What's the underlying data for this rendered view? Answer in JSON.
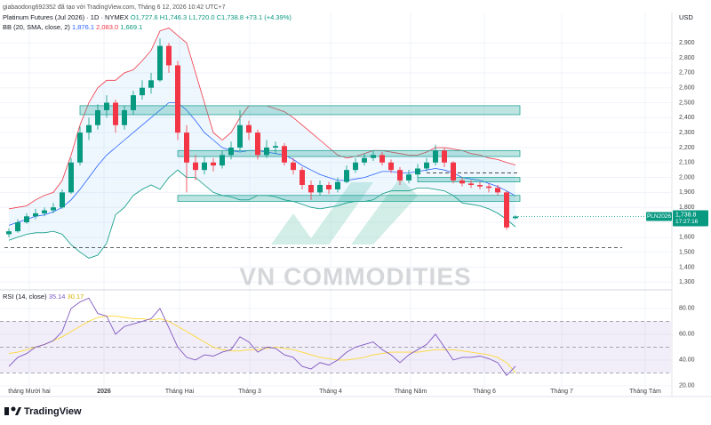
{
  "header": {
    "attribution": "giabaodong692352 đã tạo với TradingView.com, Tháng 6 12, 2026 10:42 UTC+7",
    "brand": "TradingView",
    "watermark": "VN COMMODITIES",
    "currency": "USD"
  },
  "chart_data": [
    {
      "type": "candlestick",
      "title": "Platinum Futures (Jul 2026) · 1D · NYMEX",
      "ohlc_labels": [
        "O1,727.6",
        "H1,746.3",
        "L1,720.0",
        "C1,738.8",
        "+73.1 (+4.39%)"
      ],
      "open": [
        1620,
        1640,
        1700,
        1740,
        1760,
        1780,
        1800,
        1900,
        2100,
        2300,
        2350,
        2450,
        2500,
        2350,
        2450,
        2550,
        2600,
        2650,
        2880,
        2750,
        2300,
        2100,
        2050,
        2100,
        2080,
        2150,
        2200,
        2350,
        2300,
        2150,
        2200,
        2210,
        2100,
        2050,
        1950,
        1900,
        1950,
        1920,
        1970,
        2050,
        2100,
        2130,
        2150,
        2100,
        2050,
        1980,
        2020,
        2060,
        2100,
        2180,
        2100,
        1980,
        1960,
        1950,
        1940,
        1930,
        1900,
        1727.6
      ],
      "high": [
        1660,
        1720,
        1760,
        1790,
        1800,
        1830,
        1920,
        2130,
        2340,
        2400,
        2490,
        2550,
        2520,
        2480,
        2580,
        2650,
        2700,
        2930,
        2900,
        2780,
        2350,
        2150,
        2140,
        2130,
        2180,
        2240,
        2450,
        2380,
        2320,
        2250,
        2240,
        2230,
        2130,
        2070,
        1980,
        1980,
        1970,
        2000,
        2080,
        2130,
        2160,
        2180,
        2170,
        2120,
        2070,
        2050,
        2090,
        2130,
        2220,
        2200,
        2110,
        2000,
        1980,
        1970,
        1960,
        1950,
        1910,
        1746.3
      ],
      "low": [
        1600,
        1630,
        1690,
        1720,
        1740,
        1760,
        1790,
        1890,
        2080,
        2250,
        2320,
        2400,
        2300,
        2320,
        2420,
        2520,
        2560,
        2640,
        2700,
        2250,
        1900,
        1980,
        2020,
        2040,
        2060,
        2120,
        2180,
        2250,
        2120,
        2130,
        2160,
        2080,
        2020,
        1920,
        1850,
        1880,
        1890,
        1900,
        1960,
        2030,
        2080,
        2110,
        2080,
        2030,
        1950,
        1960,
        2000,
        2040,
        2080,
        2070,
        1960,
        1940,
        1930,
        1920,
        1900,
        1880,
        1650,
        1720.0
      ],
      "close": [
        1640,
        1700,
        1740,
        1760,
        1780,
        1800,
        1900,
        2100,
        2300,
        2350,
        2450,
        2500,
        2350,
        2450,
        2550,
        2600,
        2650,
        2880,
        2750,
        2300,
        2100,
        2050,
        2100,
        2080,
        2150,
        2200,
        2350,
        2300,
        2150,
        2200,
        2210,
        2100,
        2050,
        1950,
        1900,
        1950,
        1920,
        1970,
        2050,
        2100,
        2130,
        2150,
        2100,
        2050,
        1980,
        2020,
        2060,
        2100,
        2180,
        2100,
        1980,
        1960,
        1950,
        1940,
        1930,
        1900,
        1665.7,
        1738.8
      ],
      "up_color": "#089981",
      "down_color": "#f23645",
      "last_price": {
        "symbol": "PLN2026",
        "label": "1,738.8",
        "countdown": "17:27:16"
      },
      "bollinger": {
        "label": "BB (20, SMA, close, 2)",
        "fill": "#2196f3",
        "basis": {
          "color": "#2962ff",
          "value_label": "1,876.1",
          "values": [
            1680,
            1700,
            1720,
            1740,
            1750,
            1770,
            1800,
            1850,
            1920,
            2000,
            2080,
            2150,
            2200,
            2250,
            2300,
            2350,
            2400,
            2450,
            2500,
            2500,
            2450,
            2380,
            2300,
            2250,
            2200,
            2180,
            2170,
            2180,
            2180,
            2170,
            2160,
            2150,
            2120,
            2080,
            2050,
            2020,
            2000,
            1980,
            1980,
            1990,
            2000,
            2020,
            2040,
            2040,
            2030,
            2030,
            2040,
            2050,
            2060,
            2050,
            2030,
            2000,
            1990,
            1980,
            1960,
            1940,
            1910,
            1876.1
          ]
        },
        "upper": {
          "color": "#f23645",
          "value_label": "2,083.0",
          "values": [
            1790,
            1800,
            1810,
            1850,
            1880,
            1900,
            1980,
            2150,
            2350,
            2500,
            2600,
            2650,
            2650,
            2700,
            2720,
            2780,
            2850,
            2980,
            3000,
            2950,
            2900,
            2700,
            2500,
            2300,
            2250,
            2300,
            2400,
            2480,
            2480,
            2480,
            2460,
            2440,
            2400,
            2350,
            2300,
            2250,
            2200,
            2150,
            2130,
            2140,
            2160,
            2180,
            2180,
            2170,
            2160,
            2150,
            2150,
            2170,
            2200,
            2200,
            2190,
            2180,
            2160,
            2150,
            2130,
            2120,
            2100,
            2083.0
          ]
        },
        "lower": {
          "color": "#089981",
          "value_label": "1,669.1",
          "values": [
            1580,
            1600,
            1620,
            1630,
            1630,
            1640,
            1620,
            1550,
            1500,
            1460,
            1480,
            1560,
            1750,
            1800,
            1880,
            1920,
            1950,
            1920,
            2000,
            2050,
            2000,
            2000,
            1950,
            1900,
            1880,
            1870,
            1850,
            1850,
            1880,
            1880,
            1870,
            1850,
            1840,
            1820,
            1800,
            1790,
            1800,
            1810,
            1830,
            1840,
            1840,
            1850,
            1890,
            1910,
            1910,
            1910,
            1930,
            1930,
            1920,
            1910,
            1880,
            1830,
            1820,
            1810,
            1790,
            1760,
            1720,
            1669.1
          ]
        }
      },
      "zones": [
        {
          "x": [
            8,
            57.5
          ],
          "y": [
            2420,
            2480
          ]
        },
        {
          "x": [
            19,
            57.5
          ],
          "y": [
            2140,
            2180
          ]
        },
        {
          "x": [
            46,
            57.5
          ],
          "y": [
            1970,
            2000
          ]
        },
        {
          "x": [
            19,
            57.5
          ],
          "y": [
            1840,
            1880
          ]
        }
      ],
      "zone_color": "#26a69a",
      "levels": [
        {
          "x": [
            -0.5,
            69
          ],
          "y": 1530
        },
        {
          "x": [
            47,
            57.5
          ],
          "y": 2030
        }
      ],
      "xlim": [
        -1,
        74.5
      ],
      "xticks": [
        {
          "value": 2.3,
          "label": "tháng Mười hai"
        },
        {
          "value": 10.7,
          "label": "2026"
        },
        {
          "value": 19.2,
          "label": "Tháng Hai"
        },
        {
          "value": 27.1,
          "label": "Tháng 3"
        },
        {
          "value": 36.2,
          "label": "Tháng 4"
        },
        {
          "value": 45.2,
          "label": "Tháng Năm"
        },
        {
          "value": 53.5,
          "label": "Tháng 6"
        },
        {
          "value": 62.2,
          "label": "Tháng 7"
        },
        {
          "value": 71.6,
          "label": "Tháng Tám"
        }
      ],
      "ylim": [
        1260,
        3080
      ],
      "yticks": [
        {
          "value": 1300,
          "label": "1,300"
        },
        {
          "value": 1400,
          "label": "1,400"
        },
        {
          "value": 1500,
          "label": "1,500"
        },
        {
          "value": 1600,
          "label": "1,600"
        },
        {
          "value": 1700,
          "label": "1,700"
        },
        {
          "value": 1800,
          "label": "1,800"
        },
        {
          "value": 1900,
          "label": "1,900"
        },
        {
          "value": 2000,
          "label": "2,000"
        },
        {
          "value": 2100,
          "label": "2,100"
        },
        {
          "value": 2200,
          "label": "2,200"
        },
        {
          "value": 2300,
          "label": "2,300"
        },
        {
          "value": 2400,
          "label": "2,400"
        },
        {
          "value": 2500,
          "label": "2,500"
        },
        {
          "value": 2600,
          "label": "2,600"
        },
        {
          "value": 2700,
          "label": "2,700"
        },
        {
          "value": 2800,
          "label": "2,800"
        },
        {
          "value": 2900,
          "label": "2,900"
        }
      ]
    },
    {
      "type": "line",
      "title": "RSI (14, close)",
      "series": [
        {
          "name": "35.14",
          "color": "#7e57c2",
          "values": [
            35,
            42,
            45,
            50,
            52,
            55,
            62,
            80,
            85,
            88,
            76,
            74,
            60,
            66,
            68,
            70,
            72,
            80,
            65,
            50,
            42,
            40,
            44,
            43,
            46,
            48,
            58,
            54,
            46,
            50,
            49,
            44,
            42,
            35,
            33,
            38,
            36,
            40,
            46,
            50,
            52,
            54,
            48,
            44,
            38,
            44,
            48,
            52,
            60,
            50,
            40,
            42,
            42,
            43,
            41,
            38,
            28,
            35.14
          ]
        },
        {
          "name": "30.17",
          "color": "#fdd835",
          "values": [
            45,
            46,
            48,
            50,
            52,
            55,
            58,
            62,
            66,
            70,
            73,
            74,
            74,
            73,
            72,
            72,
            71,
            72,
            70,
            66,
            62,
            58,
            54,
            50,
            48,
            47,
            47,
            48,
            48,
            49,
            50,
            49,
            48,
            46,
            44,
            42,
            41,
            40,
            40,
            41,
            42,
            44,
            45,
            46,
            46,
            46,
            46,
            47,
            48,
            48,
            48,
            47,
            46,
            45,
            44,
            42,
            38,
            30.17
          ]
        }
      ],
      "band": [
        30,
        70
      ],
      "midline": 50,
      "ylim": [
        13,
        93
      ],
      "yticks": [
        {
          "value": 20,
          "label": "20.00"
        },
        {
          "value": 40,
          "label": "40.00"
        },
        {
          "value": 60,
          "label": "60.00"
        },
        {
          "value": 80,
          "label": "80.00"
        }
      ]
    }
  ]
}
